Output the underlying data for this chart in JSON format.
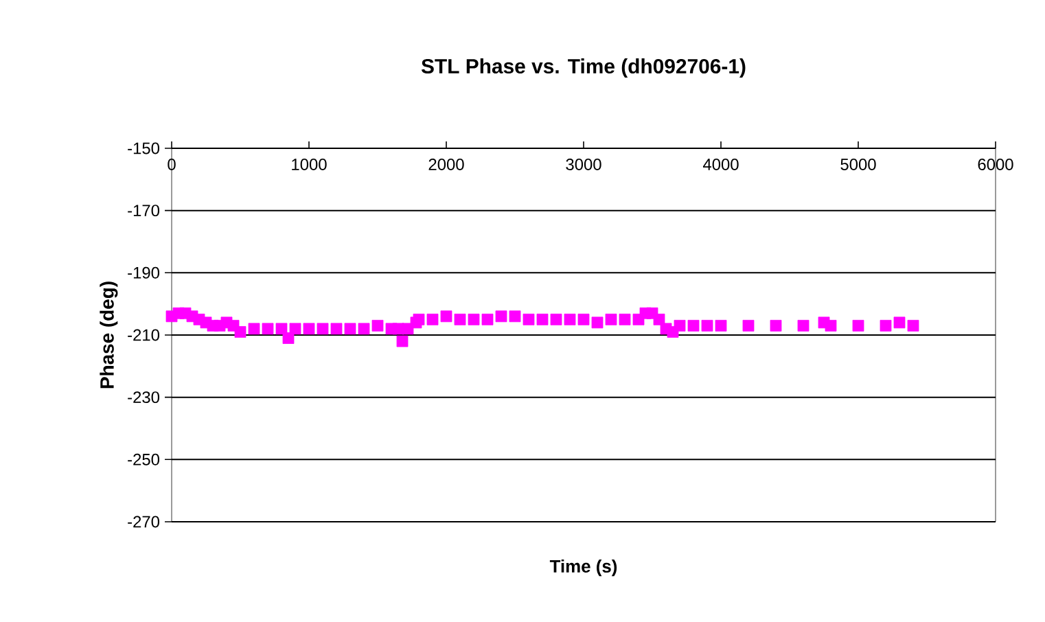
{
  "chart_data": {
    "type": "scatter",
    "title": "STL Phase vs. Time (dh092706-1)",
    "xlabel": "Time (s)",
    "ylabel": "Phase (deg)",
    "xlim": [
      0,
      6000
    ],
    "xticks": [
      0,
      1000,
      2000,
      3000,
      4000,
      5000,
      6000
    ],
    "ylim": [
      -270,
      -150
    ],
    "yticks": [
      -270,
      -250,
      -230,
      -210,
      -190,
      -170,
      -150
    ],
    "grid": "y",
    "marker": "square",
    "series": [
      {
        "color": "#ff00ff",
        "x": [
          0,
          50,
          100,
          150,
          200,
          250,
          300,
          350,
          400,
          450,
          500,
          600,
          700,
          800,
          850,
          900,
          1000,
          1100,
          1200,
          1300,
          1400,
          1500,
          1600,
          1650,
          1680,
          1720,
          1780,
          1800,
          1900,
          2000,
          2100,
          2200,
          2300,
          2400,
          2500,
          2600,
          2700,
          2800,
          2900,
          3000,
          3100,
          3200,
          3300,
          3400,
          3450,
          3500,
          3550,
          3600,
          3650,
          3700,
          3800,
          3900,
          4000,
          4200,
          4400,
          4600,
          4750,
          4800,
          5000,
          5200,
          5300,
          5400
        ],
        "values": [
          -204,
          -203,
          -203,
          -204,
          -205,
          -206,
          -207,
          -207,
          -206,
          -207,
          -209,
          -208,
          -208,
          -208,
          -211,
          -208,
          -208,
          -208,
          -208,
          -208,
          -208,
          -207,
          -208,
          -208,
          -212,
          -208,
          -206,
          -205,
          -205,
          -204,
          -205,
          -205,
          -205,
          -204,
          -204,
          -205,
          -205,
          -205,
          -205,
          -205,
          -206,
          -205,
          -205,
          -205,
          -203,
          -203,
          -205,
          -208,
          -209,
          -207,
          -207,
          -207,
          -207,
          -207,
          -207,
          -207,
          -206,
          -207,
          -207,
          -207,
          -206,
          -207
        ]
      }
    ]
  }
}
